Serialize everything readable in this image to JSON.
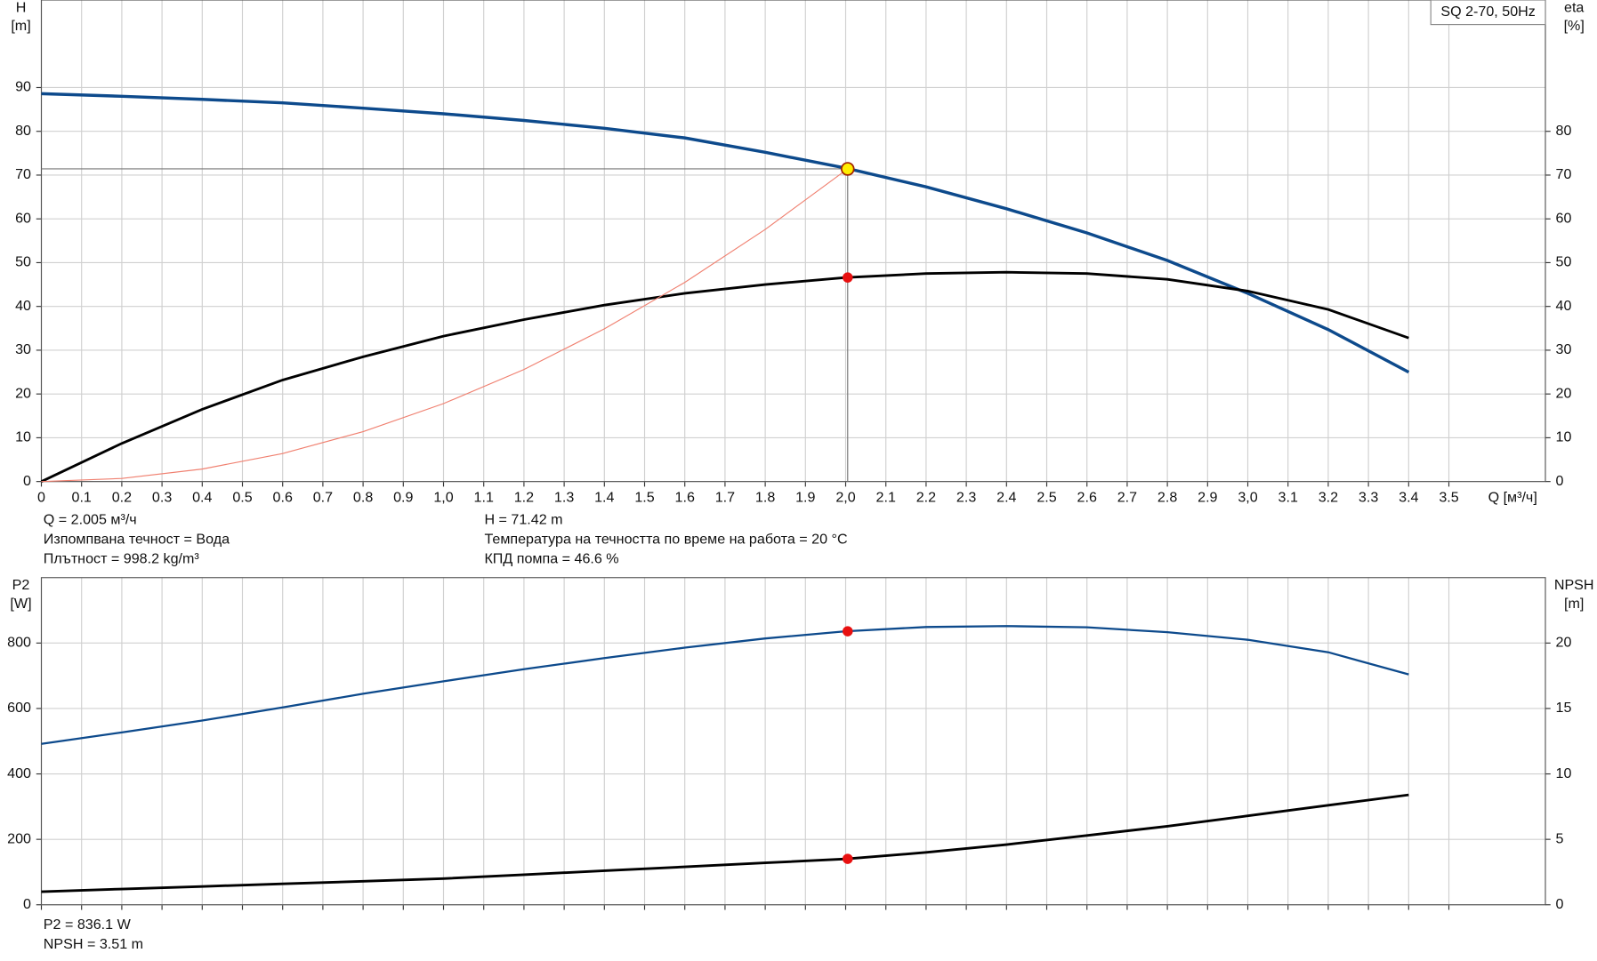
{
  "chart_data": [
    {
      "type": "line",
      "legend_label": "SQ 2-70, 50Hz",
      "y_label": [
        "H",
        "[m]"
      ],
      "y2_label": [
        "eta",
        "[%]"
      ],
      "x_label": "Q [м³/ч]",
      "xlim": [
        0,
        3.74
      ],
      "xticks": [
        0,
        0.1,
        0.2,
        0.3,
        0.4,
        0.5,
        0.6,
        0.7,
        0.8,
        0.9,
        {
          "value": 1,
          "label": "1,0"
        },
        1.1,
        1.2,
        1.3,
        1.4,
        1.5,
        1.6,
        1.7,
        1.8,
        1.9,
        {
          "value": 2,
          "label": "2,0"
        },
        2.1,
        2.2,
        2.3,
        2.4,
        2.5,
        2.6,
        2.7,
        2.8,
        2.9,
        {
          "value": 3,
          "label": "3,0"
        },
        3.1,
        3.2,
        3.3,
        3.4,
        3.5
      ],
      "ylim": [
        0,
        110
      ],
      "yticks": [
        0,
        10,
        20,
        30,
        40,
        50,
        60,
        70,
        80,
        90
      ],
      "y2lim": [
        0,
        110
      ],
      "y2ticks": [
        0,
        10,
        20,
        30,
        40,
        50,
        60,
        70,
        80
      ],
      "grid": true,
      "series": [
        {
          "color": "#0d4a8c",
          "x": [
            0,
            0.2,
            0.4,
            0.6,
            0.8,
            1.0,
            1.2,
            1.4,
            1.6,
            1.8,
            2.0,
            2.2,
            2.4,
            2.6,
            2.8,
            3.0,
            3.2,
            3.4
          ],
          "values": [
            88.6,
            88,
            87.3,
            86.5,
            85.3,
            84,
            82.5,
            80.7,
            78.5,
            75.2,
            71.6,
            67.3,
            62.3,
            56.8,
            50.5,
            43,
            34.7,
            25
          ]
        },
        {
          "color": "#000000",
          "axis": "y2",
          "x": [
            0,
            0.2,
            0.4,
            0.6,
            0.8,
            1.0,
            1.2,
            1.4,
            1.6,
            1.8,
            2.0,
            2.2,
            2.4,
            2.6,
            2.8,
            3.0,
            3.2,
            3.4
          ],
          "values": [
            0,
            8.7,
            16.5,
            23.2,
            28.5,
            33.2,
            37,
            40.3,
            43,
            45,
            46.6,
            47.5,
            47.8,
            47.5,
            46.2,
            43.5,
            39.3,
            32.8
          ]
        },
        {
          "color": "#f08070",
          "x": [
            0,
            0.2,
            0.4,
            0.6,
            0.8,
            1.0,
            1.2,
            1.4,
            1.6,
            1.8,
            2.0,
            2.005
          ],
          "values": [
            0,
            0.71,
            2.84,
            6.39,
            11.4,
            17.8,
            25.6,
            34.9,
            45.5,
            57.6,
            71.1,
            71.42
          ]
        }
      ],
      "operating_point": {
        "x": 2.005,
        "y": 71.42,
        "y2": 46.6
      },
      "info_left": [
        "Q = 2.005 м³/ч",
        "Изпомпвана течност = Вода",
        "Плътност = 998.2 kg/m³"
      ],
      "info_right": [
        "H = 71.42 m",
        "Температура на течността по време на работа = 20 °C",
        "КПД помпа = 46.6 %"
      ]
    },
    {
      "type": "line",
      "y_label": [
        "P2",
        "[W]"
      ],
      "y2_label": [
        "NPSH",
        "[m]"
      ],
      "ylim": [
        0,
        1000
      ],
      "yticks": [
        0,
        200,
        400,
        600,
        800
      ],
      "y2lim": [
        0,
        25
      ],
      "y2ticks": [
        0,
        5,
        10,
        15,
        20
      ],
      "grid": true,
      "series": [
        {
          "color": "#0d4a8c",
          "x": [
            0,
            0.2,
            0.4,
            0.6,
            0.8,
            1.0,
            1.2,
            1.4,
            1.6,
            1.8,
            2.0,
            2.2,
            2.4,
            2.6,
            2.8,
            3.0,
            3.2,
            3.4
          ],
          "values": [
            492,
            527,
            563,
            603,
            645,
            683,
            720,
            754,
            786,
            814,
            836,
            849,
            852,
            848,
            833,
            810,
            772,
            704
          ]
        },
        {
          "color": "#000000",
          "axis": "y2",
          "x": [
            0,
            0.2,
            0.4,
            0.6,
            0.8,
            1.0,
            1.2,
            1.4,
            1.6,
            1.8,
            2.0,
            2.2,
            2.4,
            2.6,
            2.8,
            3.0,
            3.2,
            3.4
          ],
          "values": [
            1.0,
            1.2,
            1.4,
            1.6,
            1.8,
            2.0,
            2.3,
            2.6,
            2.9,
            3.2,
            3.5,
            4.0,
            4.6,
            5.3,
            6.0,
            6.8,
            7.6,
            8.4
          ]
        }
      ],
      "operating_point": {
        "x": 2.005,
        "y": 836.1,
        "y2": 3.51
      },
      "info_left": [
        "P2 = 836.1 W",
        "NPSH = 3.51 m"
      ]
    }
  ]
}
